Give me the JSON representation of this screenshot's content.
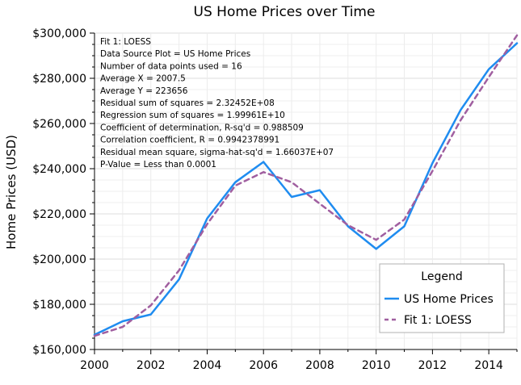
{
  "chart_data": {
    "type": "line",
    "title": "US Home Prices over Time",
    "xlabel": "",
    "ylabel": "Home Prices (USD)",
    "xlim": [
      2000,
      2015
    ],
    "ylim": [
      160000,
      300000
    ],
    "x_ticks": [
      "2000",
      "2002",
      "2004",
      "2006",
      "2008",
      "2010",
      "2012",
      "2014"
    ],
    "y_ticks": [
      "$160,000",
      "$180,000",
      "$200,000",
      "$220,000",
      "$240,000",
      "$260,000",
      "$280,000",
      "$300,000"
    ],
    "grid": true,
    "legend": {
      "title": "Legend",
      "position": "bottom-right"
    },
    "series": [
      {
        "name": "US Home Prices",
        "color": "#1f8cf0",
        "style": "solid",
        "x": [
          2000,
          2001,
          2002,
          2003,
          2004,
          2005,
          2006,
          2007,
          2008,
          2009,
          2010,
          2011,
          2012,
          2013,
          2014,
          2015
        ],
        "y": [
          166500,
          172500,
          175500,
          191000,
          218000,
          234000,
          243000,
          227500,
          230500,
          214500,
          204500,
          214500,
          242500,
          266000,
          284000,
          295500
        ]
      },
      {
        "name": "Fit 1: LOESS",
        "color": "#a05fa0",
        "style": "dashed",
        "x": [
          2000,
          2001,
          2002,
          2003,
          2004,
          2005,
          2006,
          2007,
          2008,
          2009,
          2010,
          2011,
          2012,
          2013,
          2014,
          2015
        ],
        "y": [
          166000,
          170000,
          179500,
          195000,
          215500,
          232500,
          238500,
          234000,
          224500,
          215000,
          208500,
          217500,
          239000,
          261500,
          280500,
          299000
        ]
      }
    ],
    "stats_box": [
      "Fit 1: LOESS",
      "Data Source Plot = US Home Prices",
      "Number of data points used = 16",
      "Average X = 2007.5",
      "Average Y = 223656",
      "Residual sum of squares = 2.32452E+08",
      "Regression sum of squares = 1.99961E+10",
      "Coefficient of determination, R-sq'd = 0.988509",
      "Correlation coefficient, R = 0.9942378991",
      "Residual mean square, sigma-hat-sq'd = 1.66037E+07",
      "P-Value = Less than 0.0001"
    ]
  }
}
